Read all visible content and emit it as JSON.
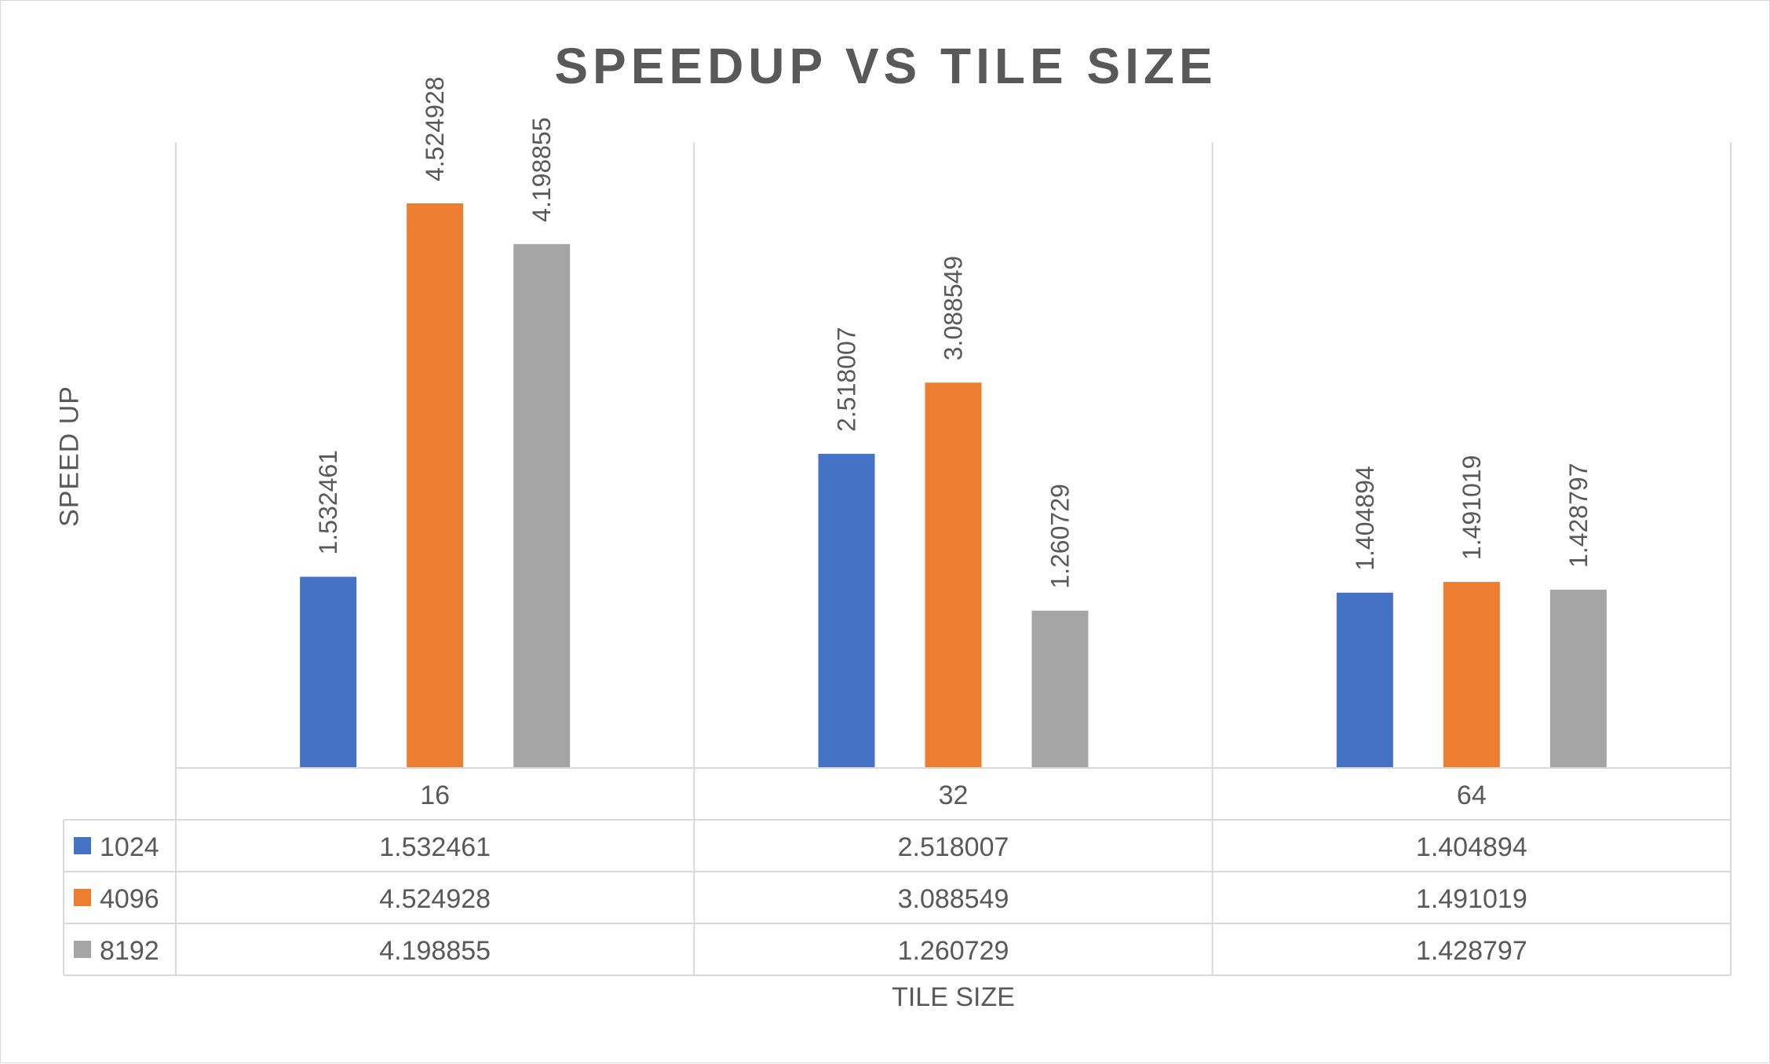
{
  "chart_data": {
    "type": "bar",
    "title": "SPEEDUP VS TILE SIZE",
    "xlabel": "TILE SIZE",
    "ylabel": "SPEED UP",
    "categories": [
      "16",
      "32",
      "64"
    ],
    "series": [
      {
        "name": "1024",
        "color": "#4472C4",
        "values": [
          1.532461,
          2.518007,
          1.404894
        ],
        "labels": [
          "1.532461",
          "2.518007",
          "1.404894"
        ]
      },
      {
        "name": "4096",
        "color": "#ED7D31",
        "values": [
          4.524928,
          3.088549,
          1.491019
        ],
        "labels": [
          "4.524928",
          "3.088549",
          "1.491019"
        ]
      },
      {
        "name": "8192",
        "color": "#A5A5A5",
        "values": [
          4.198855,
          1.260729,
          1.428797
        ],
        "labels": [
          "4.198855",
          "1.260729",
          "1.428797"
        ]
      }
    ],
    "ylim": [
      0,
      5
    ],
    "grid": false,
    "legend": "data-table",
    "data_table": true
  }
}
